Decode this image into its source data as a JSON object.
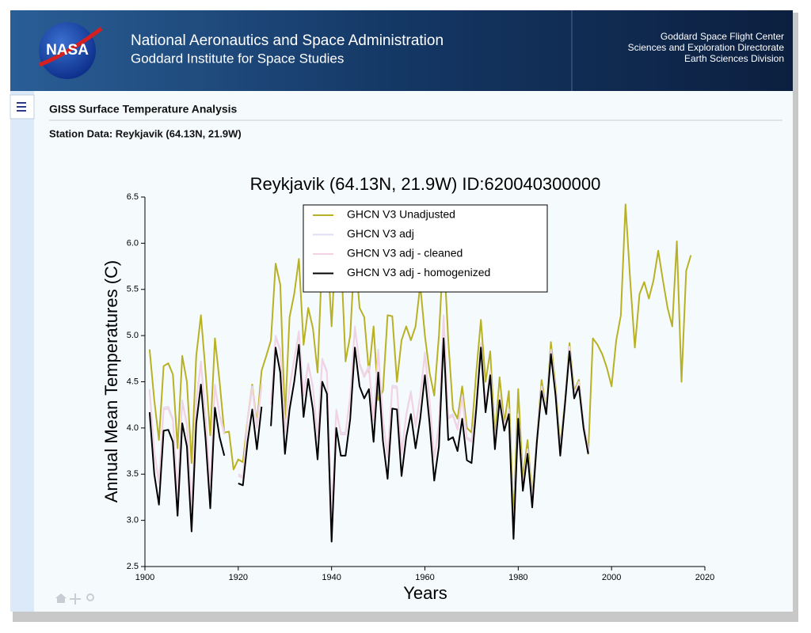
{
  "header": {
    "logo": "NASA",
    "title": "National Aeronautics and Space Administration",
    "subtitle": "Goddard Institute for Space Studies",
    "right": [
      "Goddard Space Flight Center",
      "Sciences and Exploration Directorate",
      "Earth Sciences Division"
    ]
  },
  "page": {
    "title": "GISS Surface Temperature Analysis",
    "subtitle": "Station Data: Reykjavik (64.13N, 21.9W)"
  },
  "chart_data": {
    "type": "line",
    "title": "Reykjavik (64.13N, 21.9W) ID:620040300000",
    "x_label": "Years",
    "y_label": "Annual Mean Temperatures (C)",
    "legend": "upper center",
    "grid": false,
    "xlim": [
      1900,
      2020
    ],
    "xticks": [
      1900,
      1920,
      1940,
      1960,
      1980,
      2000,
      2020
    ],
    "ylim": [
      2.5,
      6.5
    ],
    "yticks": [
      2.5,
      {
        "value": 3,
        "label": "3.0"
      },
      3.5,
      {
        "value": 4,
        "label": "4.0"
      },
      4.5,
      {
        "value": 5,
        "label": "5.0"
      },
      5.5,
      {
        "value": 6,
        "label": "6.0"
      },
      6.5
    ],
    "x": [
      1901,
      1902,
      1903,
      1904,
      1905,
      1906,
      1907,
      1908,
      1909,
      1910,
      1911,
      1912,
      1913,
      1914,
      1915,
      1916,
      1917,
      1918,
      1919,
      1920,
      1921,
      1922,
      1923,
      1924,
      1925,
      1926,
      1927,
      1928,
      1929,
      1930,
      1931,
      1932,
      1933,
      1934,
      1935,
      1936,
      1937,
      1938,
      1939,
      1940,
      1941,
      1942,
      1943,
      1944,
      1945,
      1946,
      1947,
      1948,
      1949,
      1950,
      1951,
      1952,
      1953,
      1954,
      1955,
      1956,
      1957,
      1958,
      1959,
      1960,
      1961,
      1962,
      1963,
      1964,
      1965,
      1966,
      1967,
      1968,
      1969,
      1970,
      1971,
      1972,
      1973,
      1974,
      1975,
      1976,
      1977,
      1978,
      1979,
      1980,
      1981,
      1982,
      1983,
      1984,
      1985,
      1986,
      1987,
      1988,
      1989,
      1990,
      1991,
      1992,
      1993,
      1994,
      1995,
      1996,
      1997,
      1998,
      1999,
      2000,
      2001,
      2002,
      2003,
      2004,
      2005,
      2006,
      2007,
      2008,
      2009,
      2010,
      2011,
      2012,
      2013,
      2014,
      2015,
      2016,
      2017
    ],
    "series": [
      {
        "name": "GHCN V3 Unadjusted",
        "color": "#b9b124",
        "values": [
          4.85,
          4.3,
          3.87,
          4.67,
          4.7,
          4.58,
          3.78,
          4.78,
          4.5,
          3.62,
          4.78,
          5.22,
          4.6,
          3.92,
          4.97,
          4.5,
          3.95,
          3.96,
          3.55,
          3.66,
          3.63,
          4.1,
          4.47,
          4.05,
          4.62,
          4.78,
          4.95,
          5.78,
          5.55,
          4.1,
          5.2,
          5.45,
          5.83,
          4.9,
          5.3,
          5.08,
          4.6,
          5.9,
          6.0,
          5.1,
          6.1,
          5.9,
          4.72,
          5.0,
          5.95,
          5.3,
          5.2,
          4.6,
          5.1,
          4.3,
          4.4,
          5.22,
          5.21,
          4.5,
          4.95,
          5.1,
          4.95,
          5.1,
          5.55,
          5.0,
          4.6,
          4.35,
          5.0,
          5.95,
          4.95,
          4.2,
          4.1,
          4.45,
          4.0,
          3.95,
          4.6,
          5.17,
          4.5,
          4.83,
          3.9,
          4.55,
          4.05,
          4.4,
          3.0,
          4.42,
          3.45,
          3.87,
          3.25,
          3.9,
          4.52,
          4.2,
          4.93,
          4.45,
          3.8,
          4.3,
          4.92,
          4.4,
          4.52,
          4.05,
          3.72,
          4.97,
          4.9,
          4.8,
          4.65,
          4.45,
          4.95,
          5.22,
          6.42,
          5.6,
          4.87,
          5.45,
          5.58,
          5.4,
          5.6,
          5.92,
          5.6,
          5.3,
          5.1,
          6.02,
          4.5,
          5.7,
          5.87
        ]
      },
      {
        "name": "GHCN V3 adj",
        "color": "#e2dcf2",
        "values": [
          4.42,
          3.75,
          3.42,
          4.22,
          4.23,
          4.1,
          3.3,
          4.3,
          4.05,
          3.13,
          4.3,
          4.72,
          4.13,
          3.38,
          4.47,
          4.15,
          3.95,
          null,
          null,
          3.5,
          3.48,
          4.1,
          4.45,
          4.02,
          4.48,
          null,
          4.27,
          5.0,
          4.85,
          3.97,
          4.45,
          4.75,
          5.05,
          4.37,
          4.7,
          4.45,
          3.91,
          4.75,
          4.62,
          3.02,
          4.2,
          3.95,
          3.95,
          4.35,
          5.1,
          4.7,
          4.57,
          4.67,
          4.1,
          4.85,
          4.11,
          3.7,
          4.46,
          4.45,
          3.73,
          4.15,
          4.4,
          4.03,
          4.35,
          4.82,
          4.3,
          3.68,
          4.05,
          5.22,
          4.12,
          4.15,
          4.0,
          4.35,
          3.9,
          3.87,
          4.25,
          4.92,
          4.22,
          4.62,
          3.82,
          4.35,
          4.02,
          4.2,
          2.85,
          4.15,
          3.37,
          3.77,
          3.19,
          3.9,
          4.45,
          4.2,
          4.85,
          4.4,
          3.75,
          4.3,
          4.88,
          4.37,
          4.5,
          4.05,
          3.77,
          null,
          null,
          null,
          null,
          null,
          null,
          null,
          null,
          null,
          null,
          null,
          null,
          null,
          null,
          null,
          null,
          null,
          null,
          null,
          null,
          null,
          null
        ]
      },
      {
        "name": "GHCN V3 adj - cleaned",
        "color": "#f3d3e3",
        "values": [
          4.4,
          3.73,
          3.4,
          4.2,
          4.21,
          4.08,
          3.28,
          4.28,
          4.03,
          3.11,
          4.28,
          4.7,
          4.11,
          3.36,
          4.45,
          4.13,
          3.93,
          null,
          null,
          3.48,
          3.46,
          4.08,
          4.43,
          4.0,
          4.46,
          null,
          4.25,
          4.98,
          4.83,
          3.95,
          4.43,
          4.73,
          5.03,
          4.35,
          4.68,
          4.43,
          3.89,
          4.73,
          4.6,
          3.0,
          4.18,
          3.93,
          3.93,
          4.33,
          5.08,
          4.68,
          4.55,
          4.65,
          4.08,
          4.83,
          4.09,
          3.68,
          4.44,
          4.43,
          3.71,
          4.13,
          4.38,
          4.01,
          4.33,
          4.8,
          4.28,
          3.66,
          4.03,
          5.2,
          4.1,
          4.13,
          3.98,
          4.33,
          3.88,
          3.85,
          4.23,
          4.9,
          4.2,
          4.6,
          3.8,
          4.33,
          4.0,
          4.18,
          2.83,
          4.13,
          3.35,
          3.75,
          3.17,
          3.88,
          4.43,
          4.18,
          4.83,
          4.38,
          3.73,
          4.28,
          4.86,
          4.35,
          4.48,
          4.03,
          3.75,
          null,
          null,
          null,
          null,
          null,
          null,
          null,
          null,
          null,
          null,
          null,
          null,
          null,
          null,
          null,
          null,
          null,
          null,
          null,
          null,
          null,
          null
        ]
      },
      {
        "name": "GHCN V3 adj - homogenized",
        "color": "#000000",
        "values": [
          4.17,
          3.5,
          3.17,
          3.97,
          3.98,
          3.85,
          3.05,
          4.05,
          3.8,
          2.88,
          4.05,
          4.47,
          3.88,
          3.13,
          4.22,
          3.9,
          3.7,
          null,
          null,
          3.4,
          3.38,
          3.85,
          4.2,
          3.77,
          4.23,
          null,
          4.02,
          4.87,
          4.6,
          3.72,
          4.2,
          4.5,
          4.9,
          4.12,
          4.53,
          4.2,
          3.66,
          4.5,
          4.37,
          2.77,
          4.0,
          3.7,
          3.7,
          4.1,
          4.87,
          4.45,
          4.32,
          4.42,
          3.85,
          4.6,
          3.86,
          3.45,
          4.21,
          4.2,
          3.48,
          3.9,
          4.15,
          3.78,
          4.1,
          4.57,
          4.05,
          3.43,
          3.8,
          4.97,
          3.87,
          3.9,
          3.75,
          4.1,
          3.65,
          3.62,
          4.2,
          4.87,
          4.17,
          4.57,
          3.77,
          4.3,
          3.97,
          4.15,
          2.8,
          4.1,
          3.32,
          3.72,
          3.14,
          3.85,
          4.4,
          4.15,
          4.8,
          4.35,
          3.7,
          4.25,
          4.83,
          4.32,
          4.45,
          4.0,
          3.72,
          null,
          null,
          null,
          null,
          null,
          null,
          null,
          null,
          null,
          null,
          null,
          null,
          null,
          null,
          null,
          null,
          null,
          null,
          null,
          null,
          null,
          null
        ]
      }
    ]
  }
}
